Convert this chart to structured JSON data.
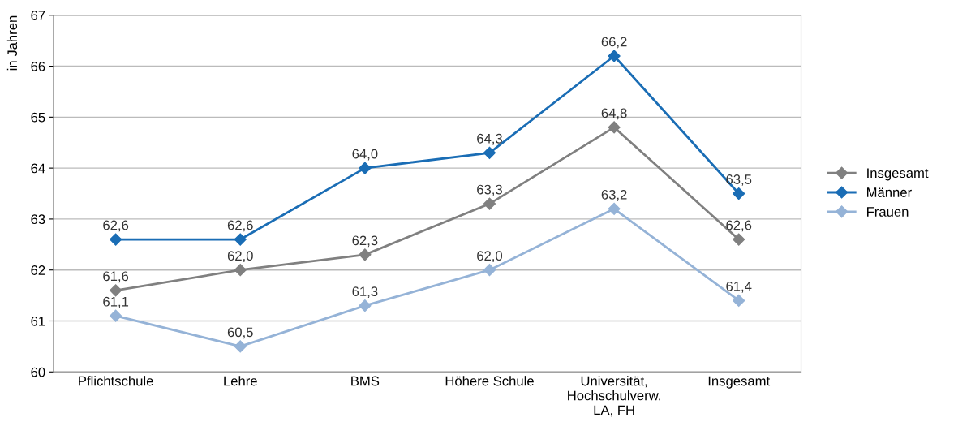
{
  "chart_data": {
    "type": "line",
    "ylabel": "in Jahren",
    "categories": [
      "Pflichtschule",
      "Lehre",
      "BMS",
      "Höhere Schule",
      "Universität,\nHochschulverw.\nLA, FH",
      "Insgesamt"
    ],
    "series": [
      {
        "name": "Insgesamt",
        "color": "#808080",
        "values": [
          61.6,
          62.0,
          62.3,
          63.3,
          64.8,
          62.6
        ],
        "value_labels": [
          "61,6",
          "62,0",
          "62,3",
          "63,3",
          "64,8",
          "62,6"
        ]
      },
      {
        "name": "Männer",
        "color": "#1a6db5",
        "values": [
          62.6,
          62.6,
          64.0,
          64.3,
          66.2,
          63.5
        ],
        "value_labels": [
          "62,6",
          "62,6",
          "64,0",
          "64,3",
          "66,2",
          "63,5"
        ]
      },
      {
        "name": "Frauen",
        "color": "#95b3d7",
        "values": [
          61.1,
          60.5,
          61.3,
          62.0,
          63.2,
          61.4
        ],
        "value_labels": [
          "61,1",
          "60,5",
          "61,3",
          "62,0",
          "63,2",
          "61,4"
        ]
      }
    ],
    "ylim": [
      60,
      67
    ],
    "yticks": [
      60,
      61,
      62,
      63,
      64,
      65,
      66,
      67
    ],
    "grid": "y",
    "legend": "right",
    "marker": "diamond",
    "line_style": "solid"
  }
}
